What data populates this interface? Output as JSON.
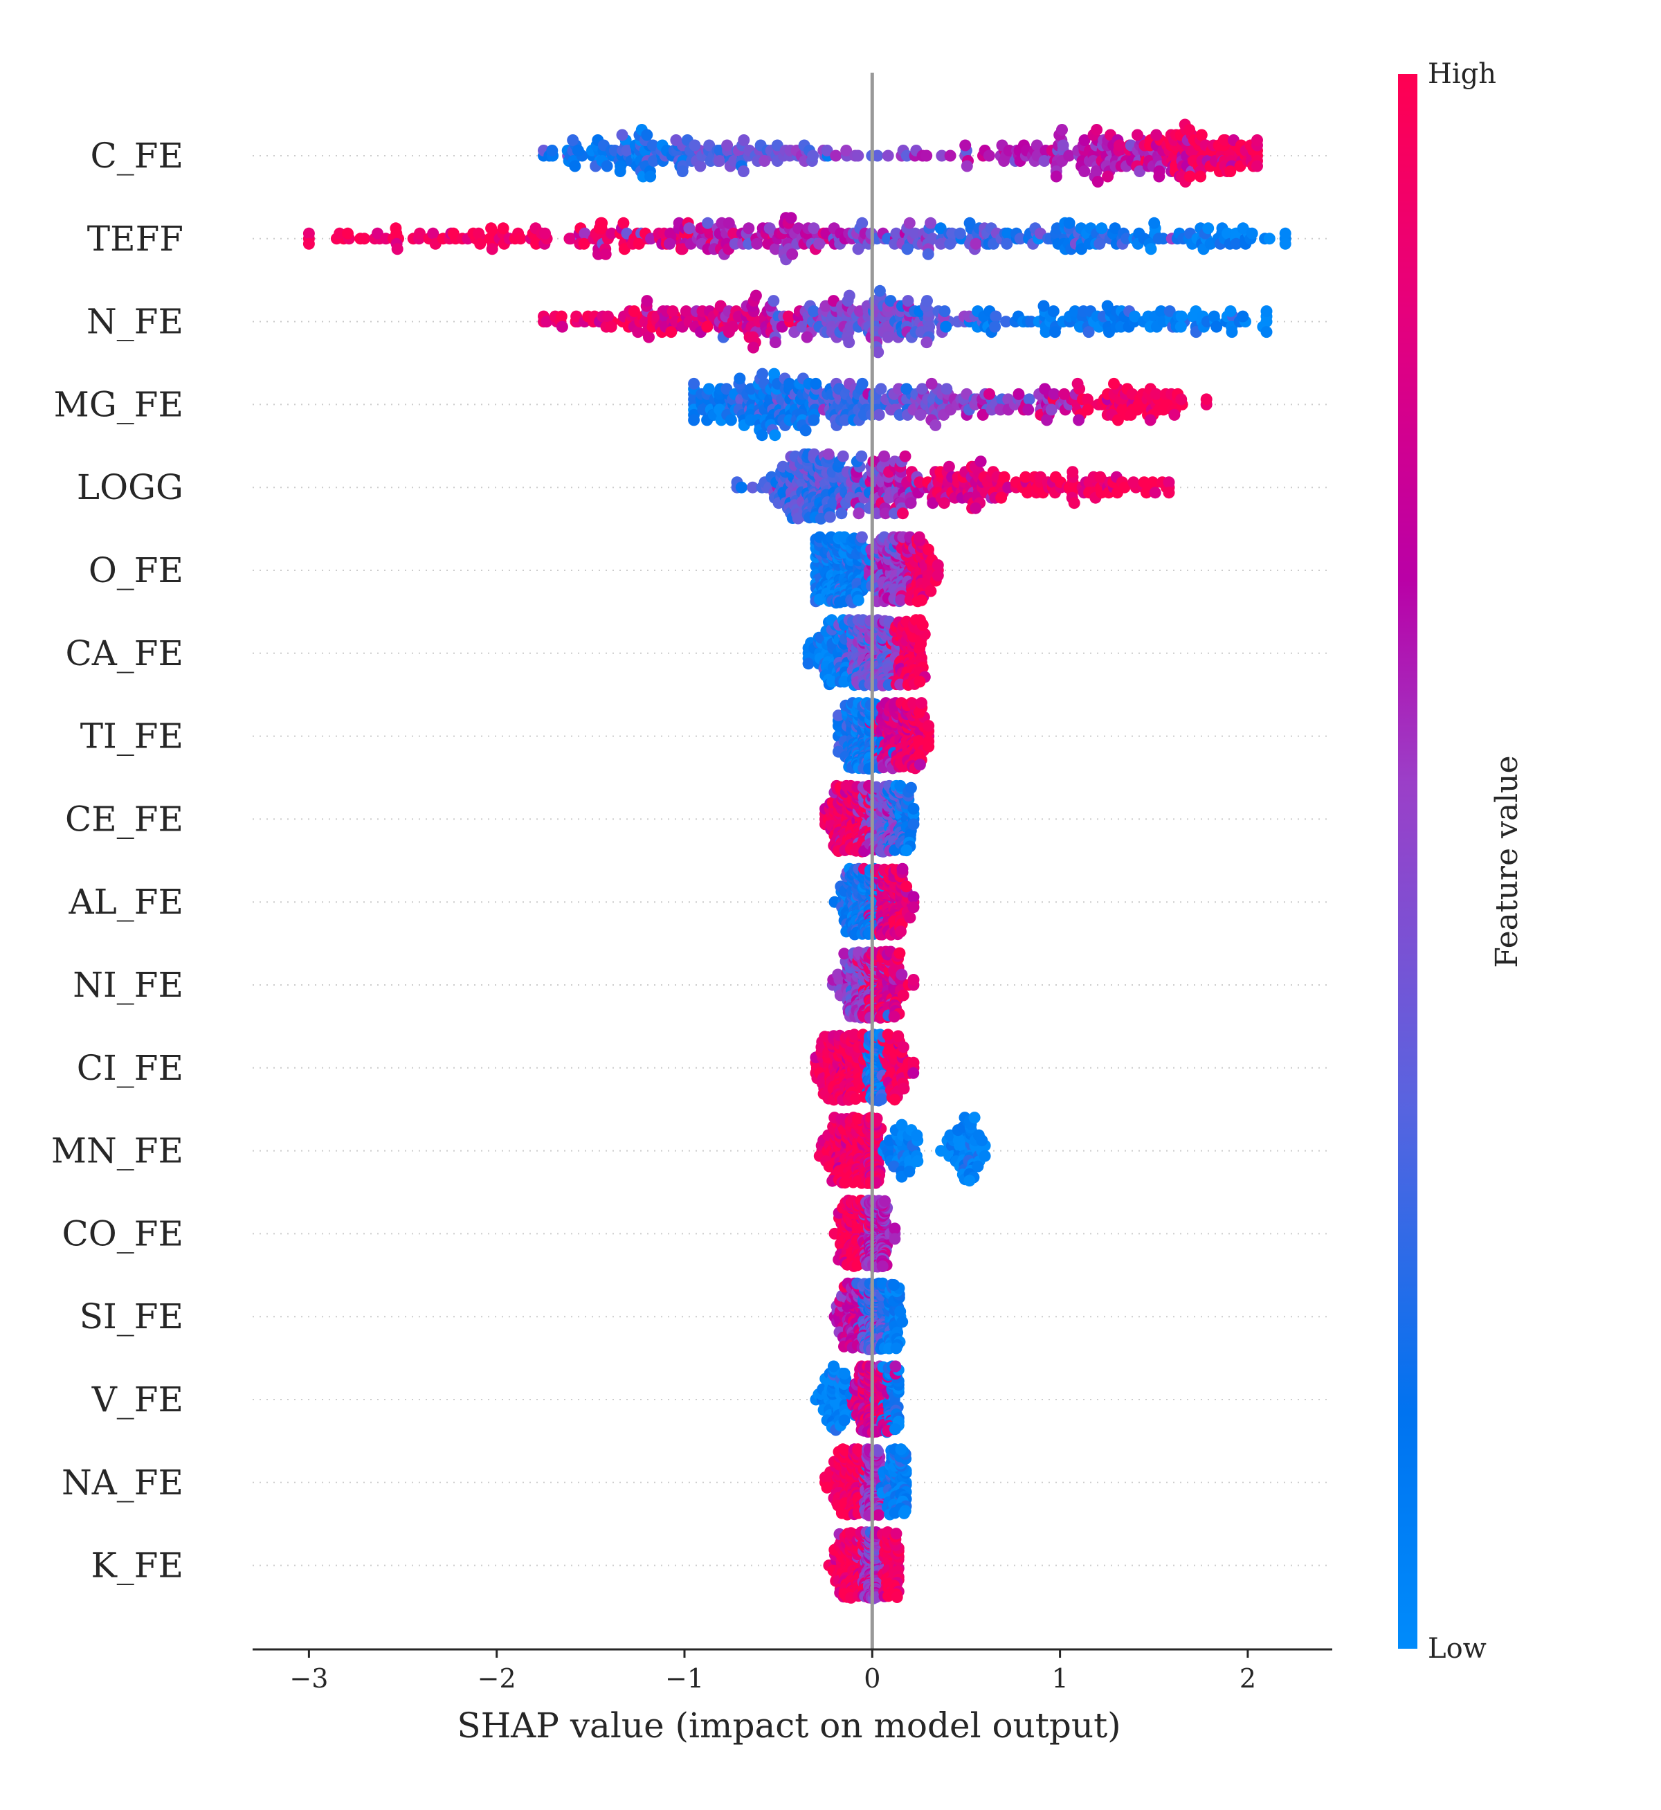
{
  "chart_data": {
    "type": "scatter",
    "variant": "shap-beeswarm",
    "xlabel": "SHAP value (impact on model output)",
    "xlim": [
      -3.3,
      2.45
    ],
    "xticks": [
      -3,
      -2,
      -1,
      0,
      1,
      2
    ],
    "xtick_labels": [
      "−3",
      "−2",
      "−1",
      "0",
      "1",
      "2"
    ],
    "zero_line": 0,
    "colorbar": {
      "title": "Feature value",
      "high_label": "High",
      "low_label": "Low",
      "low_color": "#008bfb",
      "mid_color": "#ba00a6",
      "high_color": "#ff0052"
    },
    "features": [
      {
        "name": "C_FE",
        "min": -1.75,
        "max": 2.05,
        "spread": 0.42,
        "clusters": [
          {
            "c": -1.3,
            "s": 0.22,
            "w": 0.18,
            "col": 0.15
          },
          {
            "c": -0.9,
            "s": 0.28,
            "w": 0.14,
            "col": 0.35
          },
          {
            "c": -0.45,
            "s": 0.15,
            "w": 0.06,
            "col": 0.45
          },
          {
            "c": 0.15,
            "s": 0.25,
            "w": 0.05,
            "col": 0.5
          },
          {
            "c": 1.2,
            "s": 0.28,
            "w": 0.33,
            "col": 0.65
          },
          {
            "c": 1.75,
            "s": 0.18,
            "w": 0.24,
            "col": 0.95
          }
        ]
      },
      {
        "name": "TEFF",
        "min": -3.0,
        "max": 2.2,
        "spread": 0.42,
        "clusters": [
          {
            "c": -2.3,
            "s": 0.35,
            "w": 0.12,
            "col": 0.97
          },
          {
            "c": -1.4,
            "s": 0.3,
            "w": 0.16,
            "col": 0.92
          },
          {
            "c": -0.6,
            "s": 0.4,
            "w": 0.28,
            "col": 0.62
          },
          {
            "c": 0.2,
            "s": 0.4,
            "w": 0.16,
            "col": 0.4
          },
          {
            "c": 1.1,
            "s": 0.3,
            "w": 0.18,
            "col": 0.2
          },
          {
            "c": 1.8,
            "s": 0.22,
            "w": 0.1,
            "col": 0.05
          }
        ]
      },
      {
        "name": "N_FE",
        "min": -1.75,
        "max": 2.1,
        "spread": 0.42,
        "clusters": [
          {
            "c": -1.3,
            "s": 0.25,
            "w": 0.12,
            "col": 0.92
          },
          {
            "c": -0.75,
            "s": 0.22,
            "w": 0.2,
            "col": 0.8
          },
          {
            "c": -0.15,
            "s": 0.2,
            "w": 0.2,
            "col": 0.5
          },
          {
            "c": 0.15,
            "s": 0.22,
            "w": 0.2,
            "col": 0.38
          },
          {
            "c": 1.1,
            "s": 0.35,
            "w": 0.2,
            "col": 0.12
          },
          {
            "c": 1.8,
            "s": 0.2,
            "w": 0.08,
            "col": 0.03
          }
        ]
      },
      {
        "name": "MG_FE",
        "min": -0.95,
        "max": 1.78,
        "spread": 0.4,
        "clusters": [
          {
            "c": -0.6,
            "s": 0.2,
            "w": 0.34,
            "col": 0.14
          },
          {
            "c": -0.15,
            "s": 0.2,
            "w": 0.22,
            "col": 0.3
          },
          {
            "c": 0.35,
            "s": 0.22,
            "w": 0.16,
            "col": 0.48
          },
          {
            "c": 0.9,
            "s": 0.2,
            "w": 0.1,
            "col": 0.65
          },
          {
            "c": 1.4,
            "s": 0.16,
            "w": 0.18,
            "col": 0.95
          }
        ]
      },
      {
        "name": "LOGG",
        "min": -0.72,
        "max": 1.58,
        "spread": 0.38,
        "clusters": [
          {
            "c": -0.3,
            "s": 0.14,
            "w": 0.45,
            "col": 0.3
          },
          {
            "c": 0.05,
            "s": 0.12,
            "w": 0.17,
            "col": 0.55
          },
          {
            "c": 0.45,
            "s": 0.22,
            "w": 0.2,
            "col": 0.85
          },
          {
            "c": 1.1,
            "s": 0.25,
            "w": 0.18,
            "col": 0.95
          }
        ]
      },
      {
        "name": "O_FE",
        "min": -0.3,
        "max": 0.35,
        "spread": 0.32,
        "clusters": [
          {
            "c": -0.17,
            "s": 0.07,
            "w": 0.55,
            "col": 0.1
          },
          {
            "c": 0.1,
            "s": 0.06,
            "w": 0.3,
            "col": 0.55
          },
          {
            "c": 0.25,
            "s": 0.05,
            "w": 0.15,
            "col": 0.95
          }
        ]
      },
      {
        "name": "CA_FE",
        "min": -0.34,
        "max": 0.28,
        "spread": 0.3,
        "clusters": [
          {
            "c": -0.2,
            "s": 0.08,
            "w": 0.18,
            "col": 0.08
          },
          {
            "c": 0.0,
            "s": 0.06,
            "w": 0.6,
            "col": 0.45
          },
          {
            "c": 0.2,
            "s": 0.04,
            "w": 0.22,
            "col": 0.95
          }
        ]
      },
      {
        "name": "TI_FE",
        "min": -0.18,
        "max": 0.3,
        "spread": 0.28,
        "clusters": [
          {
            "c": -0.05,
            "s": 0.05,
            "w": 0.55,
            "col": 0.15
          },
          {
            "c": 0.1,
            "s": 0.05,
            "w": 0.25,
            "col": 0.75
          },
          {
            "c": 0.22,
            "s": 0.04,
            "w": 0.2,
            "col": 0.95
          }
        ]
      },
      {
        "name": "CE_FE",
        "min": -0.25,
        "max": 0.22,
        "spread": 0.28,
        "clusters": [
          {
            "c": -0.12,
            "s": 0.06,
            "w": 0.45,
            "col": 0.92
          },
          {
            "c": 0.05,
            "s": 0.05,
            "w": 0.35,
            "col": 0.45
          },
          {
            "c": 0.15,
            "s": 0.04,
            "w": 0.2,
            "col": 0.15
          }
        ]
      },
      {
        "name": "AL_FE",
        "min": -0.2,
        "max": 0.22,
        "spread": 0.28,
        "clusters": [
          {
            "c": -0.05,
            "s": 0.05,
            "w": 0.55,
            "col": 0.15
          },
          {
            "c": 0.1,
            "s": 0.05,
            "w": 0.45,
            "col": 0.85
          }
        ]
      },
      {
        "name": "NI_FE",
        "min": -0.21,
        "max": 0.22,
        "spread": 0.28,
        "clusters": [
          {
            "c": -0.05,
            "s": 0.06,
            "w": 0.45,
            "col": 0.5
          },
          {
            "c": 0.05,
            "s": 0.05,
            "w": 0.55,
            "col": 0.85
          }
        ]
      },
      {
        "name": "CI_FE",
        "min": -0.3,
        "max": 0.22,
        "spread": 0.26,
        "clusters": [
          {
            "c": -0.15,
            "s": 0.07,
            "w": 0.4,
            "col": 0.95
          },
          {
            "c": 0.02,
            "s": 0.02,
            "w": 0.45,
            "col": 0.12
          },
          {
            "c": 0.12,
            "s": 0.05,
            "w": 0.15,
            "col": 0.95
          }
        ]
      },
      {
        "name": "MN_FE",
        "min": -0.28,
        "max": 0.6,
        "spread": 0.26,
        "clusters": [
          {
            "c": -0.12,
            "s": 0.06,
            "w": 0.4,
            "col": 0.95
          },
          {
            "c": 0.0,
            "s": 0.02,
            "w": 0.35,
            "col": 0.9
          },
          {
            "c": 0.15,
            "s": 0.06,
            "w": 0.1,
            "col": 0.05
          },
          {
            "c": 0.5,
            "s": 0.06,
            "w": 0.15,
            "col": 0.05
          }
        ]
      },
      {
        "name": "CO_FE",
        "min": -0.2,
        "max": 0.12,
        "spread": 0.26,
        "clusters": [
          {
            "c": -0.1,
            "s": 0.04,
            "w": 0.35,
            "col": 0.95
          },
          {
            "c": 0.02,
            "s": 0.03,
            "w": 0.65,
            "col": 0.6
          }
        ]
      },
      {
        "name": "SI_FE",
        "min": -0.2,
        "max": 0.16,
        "spread": 0.26,
        "clusters": [
          {
            "c": -0.1,
            "s": 0.05,
            "w": 0.25,
            "col": 0.7
          },
          {
            "c": 0.0,
            "s": 0.03,
            "w": 0.6,
            "col": 0.3
          },
          {
            "c": 0.1,
            "s": 0.03,
            "w": 0.15,
            "col": 0.1
          }
        ]
      },
      {
        "name": "V_FE",
        "min": -0.3,
        "max": 0.14,
        "spread": 0.26,
        "clusters": [
          {
            "c": -0.2,
            "s": 0.05,
            "w": 0.15,
            "col": 0.05
          },
          {
            "c": 0.0,
            "s": 0.04,
            "w": 0.7,
            "col": 0.8
          },
          {
            "c": 0.1,
            "s": 0.03,
            "w": 0.15,
            "col": 0.1
          }
        ]
      },
      {
        "name": "NA_FE",
        "min": -0.25,
        "max": 0.18,
        "spread": 0.26,
        "clusters": [
          {
            "c": -0.13,
            "s": 0.05,
            "w": 0.35,
            "col": 0.95
          },
          {
            "c": 0.0,
            "s": 0.02,
            "w": 0.45,
            "col": 0.55
          },
          {
            "c": 0.12,
            "s": 0.04,
            "w": 0.2,
            "col": 0.1
          }
        ]
      },
      {
        "name": "K_FE",
        "min": -0.23,
        "max": 0.14,
        "spread": 0.26,
        "clusters": [
          {
            "c": -0.1,
            "s": 0.05,
            "w": 0.3,
            "col": 0.95
          },
          {
            "c": 0.0,
            "s": 0.02,
            "w": 0.55,
            "col": 0.55
          },
          {
            "c": 0.1,
            "s": 0.03,
            "w": 0.15,
            "col": 0.95
          }
        ]
      }
    ]
  }
}
